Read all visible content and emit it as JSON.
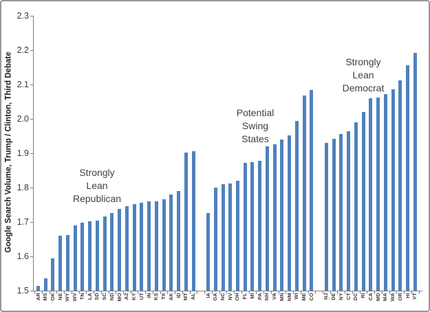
{
  "window": {
    "background": "#ffffff",
    "border_color": "#979797"
  },
  "chart_data": {
    "type": "bar",
    "title": "",
    "xlabel": "",
    "ylabel": "Google Search Volume, Trump / Clinton, Third Debate",
    "ylim": [
      1.5,
      2.3
    ],
    "ytick_step": 0.1,
    "yticks": [
      "1.5",
      "1.6",
      "1.7",
      "1.8",
      "1.9",
      "2.0",
      "2.1",
      "2.2",
      "2.3"
    ],
    "grid": false,
    "legend_position": "none",
    "bar_color": "#4F81BD",
    "groups": [
      {
        "annotation_lines": [
          "Strongly",
          "Lean",
          "Republican"
        ],
        "categories": [
          "AR",
          "MS",
          "OK",
          "NE",
          "WY",
          "WV",
          "TN",
          "LA",
          "SD",
          "SC",
          "ND",
          "MO",
          "AZ",
          "KY",
          "UT",
          "IN",
          "KS",
          "TX",
          "AK",
          "ID",
          "MT",
          "AL"
        ],
        "values": [
          1.515,
          1.537,
          1.595,
          1.661,
          1.663,
          1.691,
          1.698,
          1.703,
          1.705,
          1.716,
          1.727,
          1.738,
          1.746,
          1.753,
          1.757,
          1.76,
          1.761,
          1.767,
          1.781,
          1.791,
          1.902,
          1.906
        ]
      },
      {
        "annotation_lines": [
          "Potential",
          "Swing",
          "States"
        ],
        "categories": [
          "IA",
          "GA",
          "NC",
          "NV",
          "OH",
          "FL",
          "MI",
          "PA",
          "NH",
          "VA",
          "MN",
          "NM",
          "WI",
          "ME",
          "CO"
        ],
        "values": [
          1.727,
          1.801,
          1.81,
          1.812,
          1.821,
          1.873,
          1.875,
          1.879,
          1.921,
          1.926,
          1.94,
          1.953,
          1.995,
          2.069,
          2.085
        ]
      },
      {
        "annotation_lines": [
          "Strongly",
          "Lean",
          "Democrat"
        ],
        "categories": [
          "NJ",
          "DE",
          "NY",
          "CT",
          "DC",
          "RI",
          "CA",
          "MD",
          "MA",
          "WA",
          "OR",
          "HI",
          "VT"
        ],
        "values": [
          1.931,
          1.943,
          1.957,
          1.965,
          1.99,
          2.021,
          2.06,
          2.063,
          2.072,
          2.087,
          2.112,
          2.157,
          2.193
        ]
      }
    ]
  }
}
